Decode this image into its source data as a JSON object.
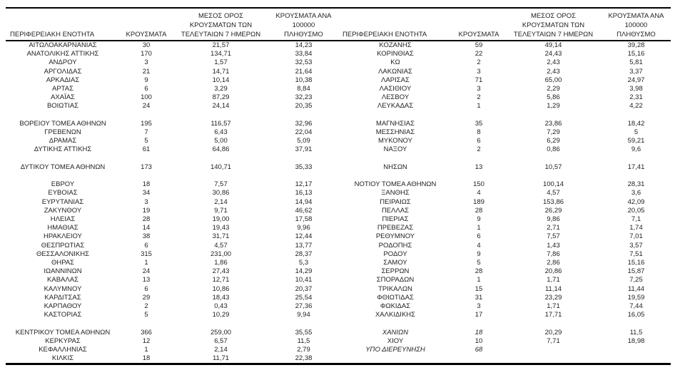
{
  "colors": {
    "background": "#ffffff",
    "text": "#1f1f1f",
    "border": "#000000"
  },
  "header": {
    "col_region": "ΠΕΡΙΦΕΡΕΙΑΚΗ ΕΝΟΤΗΤΑ",
    "col_cases": "ΚΡΟΥΣΜΑΤΑ",
    "col_avg7": "ΜΕΣΟΣ ΟΡΟΣ\nΚΡΟΥΣΜΑΤΩΝ ΤΩΝ\nΤΕΛΕΥΤΑΙΩΝ 7 ΗΜΕΡΩΝ",
    "col_per100k": "ΚΡΟΥΣΜΑΤΑ ΑΝΑ 100000\nΠΛΗΘΥΣΜΟ"
  },
  "left_table": {
    "rows": [
      {
        "region": "ΑΙΤΩΛΟΑΚΑΡΝΑΝΙΑΣ",
        "cases": "30",
        "avg7": "21,57",
        "per100k": "14,23"
      },
      {
        "region": "ΑΝΑΤΟΛΙΚΗΣ ΑΤΤΙΚΗΣ",
        "cases": "170",
        "avg7": "134,71",
        "per100k": "33,84"
      },
      {
        "region": "ΑΝΔΡΟΥ",
        "cases": "3",
        "avg7": "1,57",
        "per100k": "32,53"
      },
      {
        "region": "ΑΡΓΟΛΙΔΑΣ",
        "cases": "21",
        "avg7": "14,71",
        "per100k": "21,64"
      },
      {
        "region": "ΑΡΚΑΔΙΑΣ",
        "cases": "9",
        "avg7": "10,14",
        "per100k": "10,38"
      },
      {
        "region": "ΑΡΤΑΣ",
        "cases": "6",
        "avg7": "3,29",
        "per100k": "8,84"
      },
      {
        "region": "ΑΧΑΪΑΣ",
        "cases": "100",
        "avg7": "87,29",
        "per100k": "32,23"
      },
      {
        "region": "ΒΟΙΩΤΙΑΣ",
        "cases": "24",
        "avg7": "24,14",
        "per100k": "20,35"
      },
      {
        "spacer": true
      },
      {
        "region": "ΒΟΡΕΙΟΥ ΤΟΜΕΑ ΑΘΗΝΩΝ",
        "cases": "195",
        "avg7": "116,57",
        "per100k": "32,96"
      },
      {
        "region": "ΓΡΕΒΕΝΩΝ",
        "cases": "7",
        "avg7": "6,43",
        "per100k": "22,04"
      },
      {
        "region": "ΔΡΑΜΑΣ",
        "cases": "5",
        "avg7": "5,00",
        "per100k": "5,09"
      },
      {
        "region": "ΔΥΤΙΚΗΣ ΑΤΤΙΚΗΣ",
        "cases": "61",
        "avg7": "64,86",
        "per100k": "37,91"
      },
      {
        "spacer": true
      },
      {
        "region": "ΔΥΤΙΚΟΥ ΤΟΜΕΑ ΑΘΗΝΩΝ",
        "cases": "173",
        "avg7": "140,71",
        "per100k": "35,33"
      },
      {
        "spacer": true
      },
      {
        "region": "ΕΒΡΟΥ",
        "cases": "18",
        "avg7": "7,57",
        "per100k": "12,17"
      },
      {
        "region": "ΕΥΒΟΙΑΣ",
        "cases": "34",
        "avg7": "30,86",
        "per100k": "16,13"
      },
      {
        "region": "ΕΥΡΥΤΑΝΙΑΣ",
        "cases": "3",
        "avg7": "2,14",
        "per100k": "14,94"
      },
      {
        "region": "ΖΑΚΥΝΘΟΥ",
        "cases": "19",
        "avg7": "9,71",
        "per100k": "46,62"
      },
      {
        "region": "ΗΛΕΙΑΣ",
        "cases": "28",
        "avg7": "19,00",
        "per100k": "17,58"
      },
      {
        "region": "ΗΜΑΘΙΑΣ",
        "cases": "14",
        "avg7": "19,43",
        "per100k": "9,96"
      },
      {
        "region": "ΗΡΑΚΛΕΙΟΥ",
        "cases": "38",
        "avg7": "31,71",
        "per100k": "12,44"
      },
      {
        "region": "ΘΕΣΠΡΩΤΙΑΣ",
        "cases": "6",
        "avg7": "4,57",
        "per100k": "13,77"
      },
      {
        "region": "ΘΕΣΣΑΛΟΝΙΚΗΣ",
        "cases": "315",
        "avg7": "231,00",
        "per100k": "28,37"
      },
      {
        "region": "ΘΗΡΑΣ",
        "cases": "1",
        "avg7": "1,86",
        "per100k": "5,3"
      },
      {
        "region": "ΙΩΑΝΝΙΝΩΝ",
        "cases": "24",
        "avg7": "27,43",
        "per100k": "14,29"
      },
      {
        "region": "ΚΑΒΑΛΑΣ",
        "cases": "13",
        "avg7": "12,71",
        "per100k": "10,41"
      },
      {
        "region": "ΚΑΛΥΜΝΟΥ",
        "cases": "6",
        "avg7": "10,86",
        "per100k": "20,37"
      },
      {
        "region": "ΚΑΡΔΙΤΣΑΣ",
        "cases": "29",
        "avg7": "18,43",
        "per100k": "25,54"
      },
      {
        "region": "ΚΑΡΠΑΘΟΥ",
        "cases": "2",
        "avg7": "0,43",
        "per100k": "27,36"
      },
      {
        "region": "ΚΑΣΤΟΡΙΑΣ",
        "cases": "5",
        "avg7": "10,29",
        "per100k": "9,94"
      },
      {
        "spacer": true
      },
      {
        "region": "ΚΕΝΤΡΙΚΟΥ ΤΟΜΕΑ ΑΘΗΝΩΝ",
        "cases": "366",
        "avg7": "259,00",
        "per100k": "35,55"
      },
      {
        "region": "ΚΕΡΚΥΡΑΣ",
        "cases": "12",
        "avg7": "6,57",
        "per100k": "11,5"
      },
      {
        "region": "ΚΕΦΑΛΛΗΝΙΑΣ",
        "cases": "1",
        "avg7": "2,14",
        "per100k": "2,79"
      },
      {
        "region": "ΚΙΛΚΙΣ",
        "cases": "18",
        "avg7": "11,71",
        "per100k": "22,38"
      }
    ]
  },
  "right_table": {
    "rows": [
      {
        "region": "ΚΟΖΑΝΗΣ",
        "cases": "59",
        "avg7": "49,14",
        "per100k": "39,28"
      },
      {
        "region": "ΚΟΡΙΝΘΙΑΣ",
        "cases": "22",
        "avg7": "24,43",
        "per100k": "15,16"
      },
      {
        "region": "ΚΩ",
        "cases": "2",
        "avg7": "2,43",
        "per100k": "5,81"
      },
      {
        "region": "ΛΑΚΩΝΙΑΣ",
        "cases": "3",
        "avg7": "2,43",
        "per100k": "3,37"
      },
      {
        "region": "ΛΑΡΙΣΑΣ",
        "cases": "71",
        "avg7": "65,00",
        "per100k": "24,97"
      },
      {
        "region": "ΛΑΣΙΘΙΟΥ",
        "cases": "3",
        "avg7": "2,29",
        "per100k": "3,98"
      },
      {
        "region": "ΛΕΣΒΟΥ",
        "cases": "2",
        "avg7": "5,86",
        "per100k": "2,31"
      },
      {
        "region": "ΛΕΥΚΑΔΑΣ",
        "cases": "1",
        "avg7": "1,29",
        "per100k": "4,22"
      },
      {
        "spacer": true
      },
      {
        "region": "ΜΑΓΝΗΣΙΑΣ",
        "cases": "35",
        "avg7": "23,86",
        "per100k": "18,42"
      },
      {
        "region": "ΜΕΣΣΗΝΙΑΣ",
        "cases": "8",
        "avg7": "7,29",
        "per100k": "5"
      },
      {
        "region": "ΜΥΚΟΝΟΥ",
        "cases": "6",
        "avg7": "6,29",
        "per100k": "59,21"
      },
      {
        "region": "ΝΑΞΟΥ",
        "cases": "2",
        "avg7": "0,86",
        "per100k": "9,6"
      },
      {
        "spacer": true
      },
      {
        "region": "ΝΗΣΩΝ",
        "cases": "13",
        "avg7": "10,57",
        "per100k": "17,41"
      },
      {
        "spacer": true
      },
      {
        "region": "ΝΟΤΙΟΥ ΤΟΜΕΑ ΑΘΗΝΩΝ",
        "cases": "150",
        "avg7": "100,14",
        "per100k": "28,31"
      },
      {
        "region": "ΞΑΝΘΗΣ",
        "cases": "4",
        "avg7": "4,57",
        "per100k": "3,6"
      },
      {
        "region": "ΠΕΙΡΑΙΩΣ",
        "cases": "189",
        "avg7": "153,86",
        "per100k": "42,09"
      },
      {
        "region": "ΠΕΛΛΑΣ",
        "cases": "28",
        "avg7": "26,29",
        "per100k": "20,05"
      },
      {
        "region": "ΠΙΕΡΙΑΣ",
        "cases": "9",
        "avg7": "9,86",
        "per100k": "7,1"
      },
      {
        "region": "ΠΡΕΒΕΖΑΣ",
        "cases": "1",
        "avg7": "2,71",
        "per100k": "1,74"
      },
      {
        "region": "ΡΕΘΥΜΝΟΥ",
        "cases": "6",
        "avg7": "7,57",
        "per100k": "7,01"
      },
      {
        "region": "ΡΟΔΟΠΗΣ",
        "cases": "4",
        "avg7": "1,43",
        "per100k": "3,57"
      },
      {
        "region": "ΡΟΔΟΥ",
        "cases": "9",
        "avg7": "7,86",
        "per100k": "7,51"
      },
      {
        "region": "ΣΑΜΟΥ",
        "cases": "5",
        "avg7": "2,86",
        "per100k": "15,16"
      },
      {
        "region": "ΣΕΡΡΩΝ",
        "cases": "28",
        "avg7": "20,86",
        "per100k": "15,87"
      },
      {
        "region": "ΣΠΟΡΑΔΩΝ",
        "cases": "1",
        "avg7": "1,71",
        "per100k": "7,25"
      },
      {
        "region": "ΤΡΙΚΑΛΩΝ",
        "cases": "15",
        "avg7": "11,14",
        "per100k": "11,44"
      },
      {
        "region": "ΦΘΙΩΤΙΔΑΣ",
        "cases": "31",
        "avg7": "23,29",
        "per100k": "19,59"
      },
      {
        "region": "ΦΩΚΙΔΑΣ",
        "cases": "3",
        "avg7": "1,71",
        "per100k": "7,44"
      },
      {
        "region": "ΧΑΛΚΙΔΙΚΗΣ",
        "cases": "17",
        "avg7": "17,71",
        "per100k": "16,05"
      },
      {
        "spacer": true
      },
      {
        "region": "ΧΑΝΙΩΝ",
        "cases": "18",
        "avg7": "20,29",
        "per100k": "11,5",
        "italic": true
      },
      {
        "region": "ΧΙΟΥ",
        "cases": "10",
        "avg7": "7,71",
        "per100k": "18,98"
      },
      {
        "region": "ΥΠΟ ΔΙΕΡΕΥΝΗΣΗ",
        "cases": "68",
        "avg7": "",
        "per100k": "",
        "italic": true
      },
      {
        "spacer": true
      }
    ]
  }
}
